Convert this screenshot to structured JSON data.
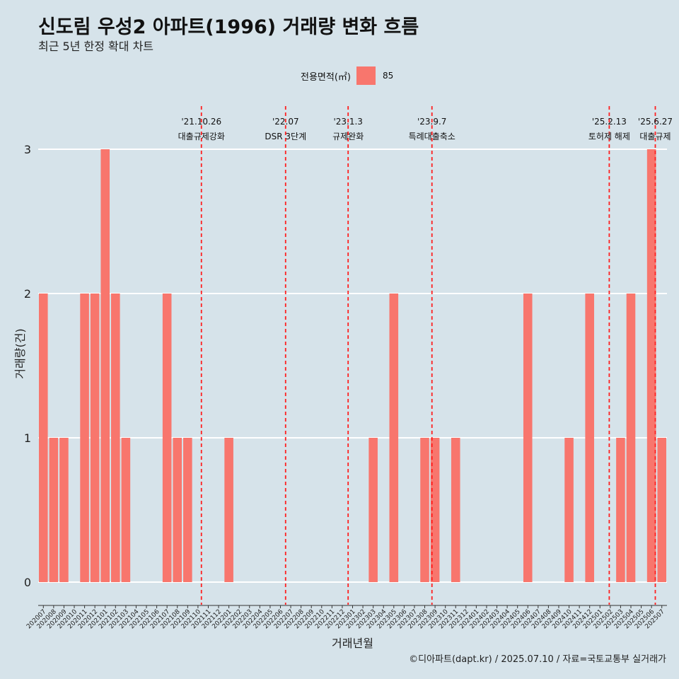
{
  "header": {
    "title": "신도림 우성2 아파트(1996) 거래량 변화 흐름",
    "subtitle": "최근 5년 한정 확대 차트"
  },
  "legend": {
    "title": "전용면적(㎡)",
    "label": "85"
  },
  "caption": "©디아파트(dapt.kr) / 2025.07.10 / 자료=국토교통부 실거래가",
  "chart_data": {
    "type": "bar",
    "xlabel": "거래년월",
    "ylabel": "거래량(건)",
    "ylim": [
      0,
      3
    ],
    "yticks": [
      0,
      1,
      2,
      3
    ],
    "grid": true,
    "legend_position": "top",
    "bar_color": "#f8766d",
    "categories": [
      "202007",
      "202008",
      "202009",
      "202010",
      "202011",
      "202012",
      "202101",
      "202102",
      "202103",
      "202104",
      "202105",
      "202106",
      "202107",
      "202108",
      "202109",
      "202110",
      "202111",
      "202112",
      "202201",
      "202202",
      "202203",
      "202204",
      "202205",
      "202206",
      "202207",
      "202208",
      "202209",
      "202210",
      "202211",
      "202212",
      "202301",
      "202302",
      "202303",
      "202304",
      "202305",
      "202306",
      "202307",
      "202308",
      "202309",
      "202310",
      "202311",
      "202312",
      "202401",
      "202402",
      "202403",
      "202404",
      "202405",
      "202406",
      "202407",
      "202408",
      "202409",
      "202410",
      "202411",
      "202412",
      "202501",
      "202502",
      "202503",
      "202504",
      "202505",
      "202506",
      "202507"
    ],
    "series": [
      {
        "name": "85",
        "values": [
          2,
          1,
          1,
          0,
          2,
          2,
          3,
          2,
          1,
          0,
          0,
          0,
          2,
          1,
          1,
          0,
          0,
          0,
          1,
          0,
          0,
          0,
          0,
          0,
          0,
          0,
          0,
          0,
          0,
          0,
          0,
          0,
          1,
          0,
          2,
          0,
          0,
          1,
          1,
          0,
          1,
          0,
          0,
          0,
          0,
          0,
          0,
          2,
          0,
          0,
          0,
          1,
          0,
          2,
          0,
          0,
          1,
          2,
          0,
          3,
          1
        ]
      }
    ],
    "annotations": [
      {
        "date": "'21.10.26",
        "label": "대출규제강화",
        "month": "202110",
        "day": 26
      },
      {
        "date": "'22.07",
        "label": "DSR 3단계",
        "month": "202207",
        "day": 1
      },
      {
        "date": "'23.1.3",
        "label": "규제완화",
        "month": "202301",
        "day": 3
      },
      {
        "date": "'23.9.7",
        "label": "특례대출축소",
        "month": "202309",
        "day": 7
      },
      {
        "date": "'25.2.13",
        "label": "토허제 해제",
        "month": "202502",
        "day": 13
      },
      {
        "date": "'25.6.27",
        "label": "대출규제",
        "month": "202506",
        "day": 27
      }
    ]
  }
}
